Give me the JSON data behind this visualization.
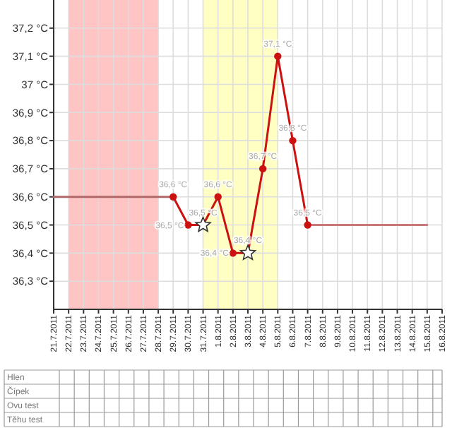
{
  "chart_data": {
    "type": "line",
    "categories": [
      "21.7.2011",
      "22.7.2011",
      "23.7.2011",
      "24.7.2011",
      "25.7.2011",
      "26.7.2011",
      "27.7.2011",
      "28.7.2011",
      "29.7.2011",
      "30.7.2011",
      "31.7.2011",
      "1.8.2011",
      "2.8.2011",
      "3.8.2011",
      "4.8.2011",
      "5.8.2011",
      "6.8.2011",
      "7.8.2011",
      "8.8.2011",
      "9.8.2011",
      "10.8.2011",
      "11.8.2011",
      "12.8.2011",
      "13.8.2011",
      "14.8.2011",
      "15.8.2011",
      "16.8.2011"
    ],
    "series": [
      {
        "color": "#b06868",
        "marker": "none",
        "values": [
          36.6,
          36.6,
          36.6,
          36.6,
          36.6,
          36.6,
          36.6,
          36.6,
          36.6,
          null,
          null,
          null,
          null,
          null,
          null,
          null,
          null,
          null,
          null,
          null,
          null,
          null,
          null,
          null,
          null,
          null,
          null
        ]
      },
      {
        "color": "#c87878",
        "marker": "none",
        "values": [
          null,
          null,
          null,
          null,
          null,
          null,
          null,
          null,
          null,
          null,
          null,
          null,
          null,
          null,
          null,
          null,
          null,
          36.5,
          36.5,
          36.5,
          36.5,
          36.5,
          36.5,
          36.5,
          36.5,
          36.5,
          null
        ]
      },
      {
        "color": "#cc1111",
        "marker": "circle",
        "values": [
          null,
          null,
          null,
          null,
          null,
          null,
          null,
          null,
          36.6,
          36.5,
          36.5,
          36.6,
          36.4,
          36.4,
          36.7,
          37.1,
          36.8,
          36.5,
          null,
          null,
          null,
          null,
          null,
          null,
          null,
          null,
          null
        ],
        "value_labels": [
          null,
          null,
          null,
          null,
          null,
          null,
          null,
          null,
          "36,6 °C",
          "36,5 °C",
          "36,5 °C",
          "36,6 °C",
          "36,4 °C",
          "36,4 °C",
          "36,7 °C",
          "37,1 °C",
          "36,8 °C",
          "36,5 °C",
          null,
          null,
          null,
          null,
          null,
          null,
          null,
          null,
          null
        ]
      },
      {
        "type": "scatter",
        "color": "#ffffff",
        "marker": "star",
        "x": [
          "31.7.2011",
          "3.8.2011"
        ],
        "values": [
          36.5,
          36.4
        ]
      }
    ],
    "ylim": [
      36.2,
      37.3
    ],
    "yticks": [
      {
        "value": 36.3,
        "label": "36,3 °C"
      },
      {
        "value": 36.4,
        "label": "36,4 °C"
      },
      {
        "value": 36.5,
        "label": "36,5 °C"
      },
      {
        "value": 36.6,
        "label": "36,6 °C"
      },
      {
        "value": 36.7,
        "label": "36,7 °C"
      },
      {
        "value": 36.8,
        "label": "36,8 °C"
      },
      {
        "value": 36.9,
        "label": "36,9 °C"
      },
      {
        "value": 37,
        "label": "37 °C"
      },
      {
        "value": 37.1,
        "label": "37,1 °C"
      },
      {
        "value": 37.2,
        "label": "37,2 °C"
      }
    ],
    "grid": true,
    "bands": [
      {
        "axis": "x",
        "from": "22.7.2011",
        "to": "28.7.2011",
        "color": "#ffc4c4"
      },
      {
        "axis": "x",
        "from": "31.7.2011",
        "to": "5.8.2011",
        "color": "#ffffc4"
      }
    ],
    "annotations": [
      "Hlen",
      "Čípek",
      "Ovu test",
      "Těhu test"
    ]
  }
}
